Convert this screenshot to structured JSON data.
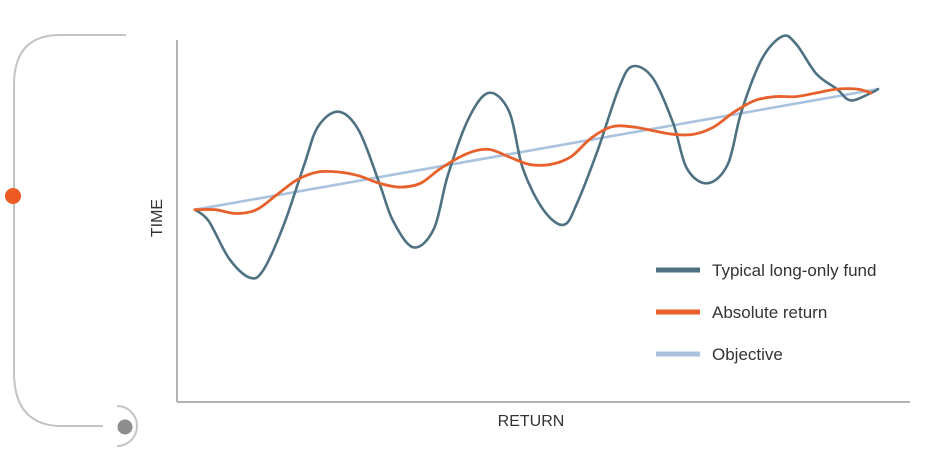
{
  "colors": {
    "fund": "#4f7283",
    "absolute": "#e8602c",
    "objective": "#a9c3df",
    "axis": "#9a9a9a",
    "decor": "#c4c4c4",
    "orange_dot": "#ee5a24",
    "grey_dot": "#8e8e8e"
  },
  "chart_data": {
    "type": "line",
    "title": "",
    "xlabel": "RETURN",
    "ylabel": "TIME",
    "grid": false,
    "legend_position": "bottom-right",
    "xlim": [
      0,
      100
    ],
    "ylim": [
      0,
      100
    ],
    "series": [
      {
        "name": "Typical long-only fund",
        "color": "#4f7283",
        "x": [
          0,
          2,
          5,
          8,
          10,
          13,
          16,
          18,
          21,
          24,
          27,
          29,
          32,
          35,
          37,
          40,
          43,
          46,
          48,
          51,
          54,
          56,
          59,
          62,
          64,
          67,
          70,
          72,
          75,
          78,
          80,
          83,
          86,
          88,
          91,
          94,
          96,
          99,
          100
        ],
        "y": [
          51,
          48,
          38,
          33,
          35,
          47,
          63,
          73,
          77,
          72,
          58,
          48,
          41,
          46,
          60,
          75,
          82,
          77,
          62,
          51,
          47,
          53,
          67,
          83,
          89,
          86,
          74,
          62,
          58,
          63,
          77,
          91,
          97,
          95,
          87,
          83,
          80,
          82,
          83
        ]
      },
      {
        "name": "Absolute return",
        "color": "#e8602c",
        "x": [
          0,
          3,
          6,
          9,
          12,
          15,
          18,
          21,
          24,
          27,
          30,
          33,
          36,
          40,
          43,
          46,
          49,
          52,
          55,
          58,
          61,
          64,
          67,
          70,
          73,
          76,
          79,
          82,
          85,
          88,
          91,
          94,
          97,
          99
        ],
        "y": [
          51,
          51,
          50,
          51,
          55,
          59,
          61,
          61,
          60,
          58,
          57,
          58,
          62,
          66,
          67,
          65,
          63,
          63,
          65,
          70,
          73,
          73,
          72,
          71,
          71,
          73,
          77,
          80,
          81,
          81,
          82,
          83,
          83,
          82
        ]
      },
      {
        "name": "Objective",
        "color": "#a9c3df",
        "x": [
          0,
          100
        ],
        "y": [
          51,
          83
        ]
      }
    ]
  }
}
